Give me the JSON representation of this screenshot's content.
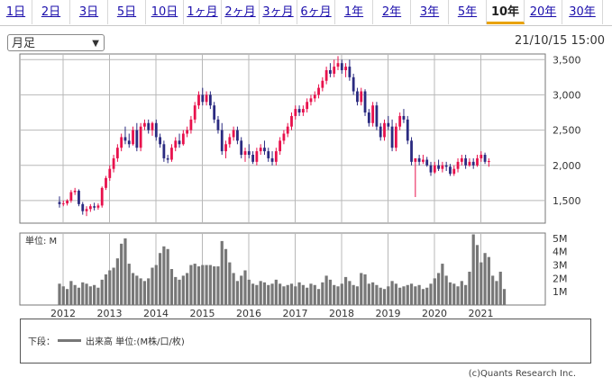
{
  "tabs": [
    {
      "label": "1日",
      "active": false
    },
    {
      "label": "2日",
      "active": false
    },
    {
      "label": "3日",
      "active": false
    },
    {
      "label": "5日",
      "active": false
    },
    {
      "label": "10日",
      "active": false
    },
    {
      "label": "1ヶ月",
      "active": false
    },
    {
      "label": "2ヶ月",
      "active": false
    },
    {
      "label": "3ヶ月",
      "active": false
    },
    {
      "label": "6ヶ月",
      "active": false
    },
    {
      "label": "1年",
      "active": false
    },
    {
      "label": "2年",
      "active": false
    },
    {
      "label": "3年",
      "active": false
    },
    {
      "label": "5年",
      "active": false
    },
    {
      "label": "10年",
      "active": true
    },
    {
      "label": "20年",
      "active": false
    },
    {
      "label": "30年",
      "active": false
    }
  ],
  "period_select": {
    "value": "月足"
  },
  "timestamp": "21/10/15 15:00",
  "legend": {
    "label": "下段：",
    "text": "出来高 単位:(M株/口/枚)"
  },
  "credit": "(c)Quants Research Inc.",
  "colors": {
    "up": "#e8114c",
    "down": "#2a2a80",
    "volume": "#777777",
    "grid": "#b8b8b8"
  },
  "chart_data": [
    {
      "type": "candlestick",
      "x_tick_labels": [
        "2012",
        "2013",
        "2014",
        "2015",
        "2016",
        "2017",
        "2018",
        "2019",
        "2020",
        "2021"
      ],
      "price_ticks": [
        1500,
        2000,
        2500,
        3000,
        3500
      ],
      "price_tick_labels": [
        "1,500",
        "2,000",
        "2,500",
        "3,000",
        "3,500"
      ],
      "ylim": [
        1180,
        3580
      ],
      "grid": true,
      "start": "2012-01",
      "interval": "month",
      "ohlc": [
        [
          1480,
          1560,
          1400,
          1450
        ],
        [
          1450,
          1500,
          1420,
          1460
        ],
        [
          1460,
          1520,
          1430,
          1500
        ],
        [
          1500,
          1650,
          1470,
          1620
        ],
        [
          1620,
          1680,
          1580,
          1640
        ],
        [
          1640,
          1660,
          1420,
          1450
        ],
        [
          1450,
          1480,
          1300,
          1350
        ],
        [
          1350,
          1420,
          1280,
          1380
        ],
        [
          1380,
          1450,
          1340,
          1420
        ],
        [
          1420,
          1470,
          1360,
          1400
        ],
        [
          1400,
          1460,
          1370,
          1430
        ],
        [
          1430,
          1700,
          1400,
          1680
        ],
        [
          1680,
          1850,
          1650,
          1820
        ],
        [
          1820,
          2000,
          1780,
          1950
        ],
        [
          1950,
          2150,
          1900,
          2100
        ],
        [
          2100,
          2300,
          2050,
          2250
        ],
        [
          2250,
          2450,
          2200,
          2400
        ],
        [
          2400,
          2550,
          2300,
          2350
        ],
        [
          2350,
          2450,
          2250,
          2300
        ],
        [
          2300,
          2550,
          2280,
          2500
        ],
        [
          2500,
          2600,
          2200,
          2250
        ],
        [
          2250,
          2600,
          2200,
          2550
        ],
        [
          2550,
          2650,
          2500,
          2600
        ],
        [
          2600,
          2650,
          2450,
          2500
        ],
        [
          2500,
          2620,
          2420,
          2600
        ],
        [
          2600,
          2650,
          2350,
          2400
        ],
        [
          2400,
          2450,
          2250,
          2300
        ],
        [
          2300,
          2350,
          2050,
          2100
        ],
        [
          2100,
          2150,
          2030,
          2080
        ],
        [
          2080,
          2300,
          2050,
          2250
        ],
        [
          2250,
          2400,
          2200,
          2350
        ],
        [
          2350,
          2450,
          2250,
          2300
        ],
        [
          2300,
          2500,
          2280,
          2450
        ],
        [
          2450,
          2550,
          2400,
          2500
        ],
        [
          2500,
          2700,
          2450,
          2650
        ],
        [
          2650,
          2900,
          2600,
          2850
        ],
        [
          2850,
          3050,
          2800,
          3000
        ],
        [
          3000,
          3100,
          2850,
          2900
        ],
        [
          2900,
          3050,
          2850,
          3000
        ],
        [
          3000,
          3050,
          2800,
          2850
        ],
        [
          2850,
          2900,
          2600,
          2650
        ],
        [
          2650,
          2700,
          2450,
          2500
        ],
        [
          2500,
          2600,
          2150,
          2200
        ],
        [
          2200,
          2350,
          2100,
          2300
        ],
        [
          2300,
          2450,
          2250,
          2400
        ],
        [
          2400,
          2550,
          2350,
          2500
        ],
        [
          2500,
          2550,
          2300,
          2350
        ],
        [
          2350,
          2400,
          2100,
          2150
        ],
        [
          2150,
          2250,
          2050,
          2200
        ],
        [
          2200,
          2300,
          2100,
          2150
        ],
        [
          2150,
          2200,
          2020,
          2050
        ],
        [
          2050,
          2250,
          2000,
          2200
        ],
        [
          2200,
          2300,
          2150,
          2250
        ],
        [
          2250,
          2350,
          2150,
          2200
        ],
        [
          2200,
          2250,
          2050,
          2100
        ],
        [
          2100,
          2200,
          2000,
          2050
        ],
        [
          2050,
          2250,
          2000,
          2200
        ],
        [
          2200,
          2400,
          2150,
          2350
        ],
        [
          2350,
          2500,
          2300,
          2450
        ],
        [
          2450,
          2600,
          2400,
          2550
        ],
        [
          2550,
          2750,
          2500,
          2700
        ],
        [
          2700,
          2850,
          2650,
          2800
        ],
        [
          2800,
          2850,
          2700,
          2750
        ],
        [
          2750,
          2850,
          2700,
          2800
        ],
        [
          2800,
          2950,
          2750,
          2900
        ],
        [
          2900,
          3000,
          2850,
          2950
        ],
        [
          2950,
          3050,
          2900,
          3000
        ],
        [
          3000,
          3150,
          2950,
          3100
        ],
        [
          3100,
          3250,
          3050,
          3200
        ],
        [
          3200,
          3400,
          3150,
          3350
        ],
        [
          3350,
          3450,
          3250,
          3300
        ],
        [
          3300,
          3500,
          3250,
          3400
        ],
        [
          3400,
          3550,
          3350,
          3450
        ],
        [
          3450,
          3500,
          3300,
          3350
        ],
        [
          3350,
          3450,
          3250,
          3400
        ],
        [
          3400,
          3500,
          3200,
          3250
        ],
        [
          3250,
          3300,
          3000,
          3050
        ],
        [
          3050,
          3100,
          2850,
          2900
        ],
        [
          2900,
          3100,
          2850,
          3050
        ],
        [
          3050,
          3080,
          2700,
          2750
        ],
        [
          2750,
          2800,
          2550,
          2600
        ],
        [
          2600,
          2900,
          2550,
          2850
        ],
        [
          2850,
          2900,
          2500,
          2550
        ],
        [
          2550,
          2600,
          2350,
          2400
        ],
        [
          2400,
          2650,
          2350,
          2600
        ],
        [
          2600,
          2700,
          2500,
          2550
        ],
        [
          2550,
          2650,
          2200,
          2250
        ],
        [
          2250,
          2600,
          2200,
          2550
        ],
        [
          2550,
          2750,
          2500,
          2700
        ],
        [
          2700,
          2800,
          2600,
          2650
        ],
        [
          2650,
          2700,
          2300,
          2350
        ],
        [
          2350,
          2400,
          2000,
          2050
        ],
        [
          2050,
          2100,
          1550,
          2100
        ],
        [
          2100,
          2150,
          2000,
          2050
        ],
        [
          2050,
          2150,
          2020,
          2080
        ],
        [
          2080,
          2120,
          1980,
          2000
        ],
        [
          2000,
          2050,
          1850,
          1900
        ],
        [
          1900,
          2050,
          1880,
          2000
        ],
        [
          2000,
          2080,
          1920,
          1950
        ],
        [
          1950,
          2050,
          1900,
          2000
        ],
        [
          2000,
          2050,
          1920,
          1980
        ],
        [
          1980,
          2020,
          1850,
          1880
        ],
        [
          1880,
          2000,
          1850,
          1950
        ],
        [
          1950,
          2100,
          1900,
          2050
        ],
        [
          2050,
          2150,
          2000,
          2100
        ],
        [
          2100,
          2150,
          1950,
          2000
        ],
        [
          2000,
          2100,
          1980,
          2050
        ],
        [
          2050,
          2100,
          1950,
          2000
        ],
        [
          2000,
          2150,
          1980,
          2100
        ],
        [
          2100,
          2200,
          2050,
          2150
        ],
        [
          2150,
          2180,
          2020,
          2050
        ],
        [
          2050,
          2100,
          1980,
          2060
        ]
      ]
    },
    {
      "type": "bar",
      "label": "単位: M",
      "volume_ticks": [
        1,
        2,
        3,
        4,
        5
      ],
      "volume_tick_labels": [
        "1M",
        "2M",
        "3M",
        "4M",
        "5M"
      ],
      "ylim": [
        0,
        5.4
      ],
      "values": [
        1.6,
        1.4,
        1.2,
        1.8,
        1.5,
        1.3,
        1.7,
        1.6,
        1.4,
        1.5,
        1.3,
        1.9,
        2.3,
        2.6,
        2.8,
        3.5,
        4.6,
        5.0,
        3.1,
        2.4,
        2.2,
        2.0,
        1.8,
        2.0,
        2.8,
        3.0,
        3.9,
        4.4,
        4.2,
        2.7,
        2.1,
        1.9,
        2.2,
        2.4,
        3.0,
        3.1,
        2.9,
        3.0,
        3.0,
        3.0,
        2.9,
        2.9,
        4.8,
        4.2,
        3.2,
        2.4,
        1.8,
        2.2,
        2.6,
        1.9,
        1.6,
        1.5,
        1.8,
        1.7,
        1.5,
        1.6,
        1.9,
        1.6,
        1.4,
        1.5,
        1.6,
        1.4,
        1.7,
        1.5,
        1.3,
        1.6,
        1.5,
        1.2,
        1.7,
        2.2,
        1.9,
        1.5,
        1.4,
        1.6,
        2.1,
        1.8,
        1.5,
        1.4,
        2.4,
        2.3,
        1.6,
        1.7,
        1.5,
        1.3,
        1.2,
        1.4,
        1.8,
        1.6,
        1.3,
        1.4,
        1.5,
        1.6,
        1.4,
        1.5,
        1.2,
        1.3,
        1.6,
        2.0,
        2.4,
        3.1,
        2.2,
        1.7,
        1.6,
        1.4,
        1.8,
        1.5,
        2.5,
        5.3,
        4.5,
        3.2,
        3.9,
        3.6,
        2.2,
        1.8,
        2.5,
        1.2
      ]
    }
  ]
}
